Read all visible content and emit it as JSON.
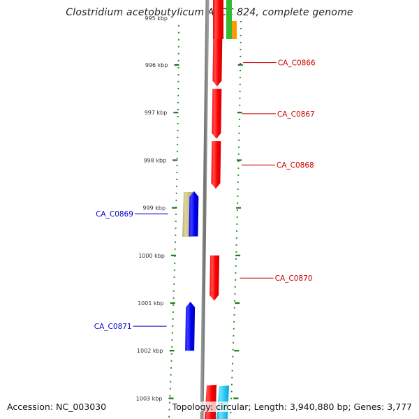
{
  "title": "Clostridium acetobutylicum ATCC 824, complete genome",
  "accession": "Accession: NC_003030",
  "summary": "Topology: circular; Length: 3,940,880 bp; Genes: 3,777",
  "top_tick_label": "995 kbp",
  "ticks": [
    {
      "kbp": 996,
      "label": "996 kbp"
    },
    {
      "kbp": 997,
      "label": "997 kbp"
    },
    {
      "kbp": 998,
      "label": "998 kbp"
    },
    {
      "kbp": 999,
      "label": "999 kbp"
    },
    {
      "kbp": 1000,
      "label": "1000 kbp"
    },
    {
      "kbp": 1001,
      "label": "1001 kbp"
    },
    {
      "kbp": 1002,
      "label": "1002 kbp"
    },
    {
      "kbp": 1003,
      "label": "1003 kbp"
    }
  ],
  "genes": [
    {
      "name": "CA_C0866",
      "start_kbp": 995.45,
      "end_kbp": 996.45,
      "strand": "+",
      "color": "#ff0000"
    },
    {
      "name": "CA_C0867",
      "start_kbp": 996.5,
      "end_kbp": 997.55,
      "strand": "+",
      "color": "#ff0000"
    },
    {
      "name": "CA_C0868",
      "start_kbp": 997.6,
      "end_kbp": 998.6,
      "strand": "+",
      "color": "#ff0000"
    },
    {
      "name": "CA_C0869",
      "start_kbp": 998.65,
      "end_kbp": 999.6,
      "strand": "-",
      "color": "#0000ff"
    },
    {
      "name": "CA_C0870",
      "start_kbp": 1000.0,
      "end_kbp": 1000.95,
      "strand": "+",
      "color": "#ff0000"
    },
    {
      "name": "CA_C0871",
      "start_kbp": 1000.97,
      "end_kbp": 1002.0,
      "strand": "-",
      "color": "#0000ff"
    }
  ],
  "label_colors": {
    "plus": "#cc0000",
    "minus": "#0000cc"
  },
  "backbone_color": "#888888",
  "tick_color": "#1a7a1a",
  "other_feature_colors": {
    "olive": "#c8c080",
    "green": "#33bb33",
    "orange": "#ff9900",
    "cyan": "#22ccee"
  }
}
